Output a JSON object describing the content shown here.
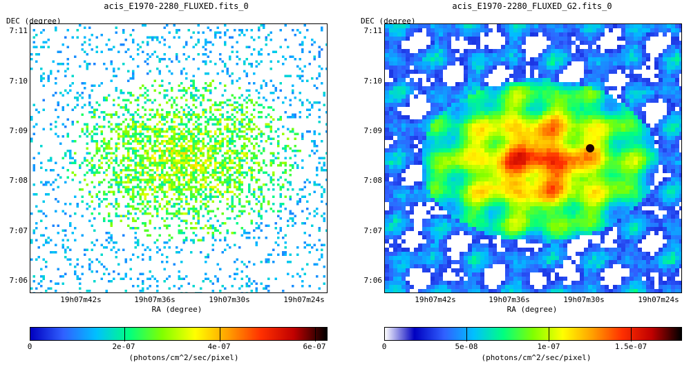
{
  "panels": [
    {
      "title": "acis_E1970-2280_FLUXED.fits_0",
      "y_axis_label": "DEC (degree)",
      "x_axis_label": "RA (degree)",
      "y_ticks": [
        "7:11",
        "7:10",
        "7:09",
        "7:08",
        "7:07",
        "7:06"
      ],
      "x_ticks": [
        "19h07m42s",
        "19h07m36s",
        "19h07m30s",
        "19h07m24s"
      ],
      "colorbar": {
        "ticks": [
          "0",
          "2e-07",
          "4e-07",
          "6e-07"
        ],
        "label": "(photons/cm^2/sec/pixel)"
      }
    },
    {
      "title": "acis_E1970-2280_FLUXED_G2.fits_0",
      "y_axis_label": "DEC (degree)",
      "x_axis_label": "RA (degree)",
      "y_ticks": [
        "7:11",
        "7:10",
        "7:09",
        "7:08",
        "7:07",
        "7:06"
      ],
      "x_ticks": [
        "19h07m42s",
        "19h07m36s",
        "19h07m30s",
        "19h07m24s"
      ],
      "colorbar": {
        "ticks": [
          "0",
          "5e-08",
          "1e-07",
          "1.5e-07"
        ],
        "label": "(photons/cm^2/sec/pixel)"
      }
    }
  ],
  "colormap": [
    "#ffffff",
    "#0000c0",
    "#3060ff",
    "#00c0ff",
    "#00ff80",
    "#80ff00",
    "#ffff00",
    "#ffa000",
    "#ff3000",
    "#c00000",
    "#000000"
  ]
}
